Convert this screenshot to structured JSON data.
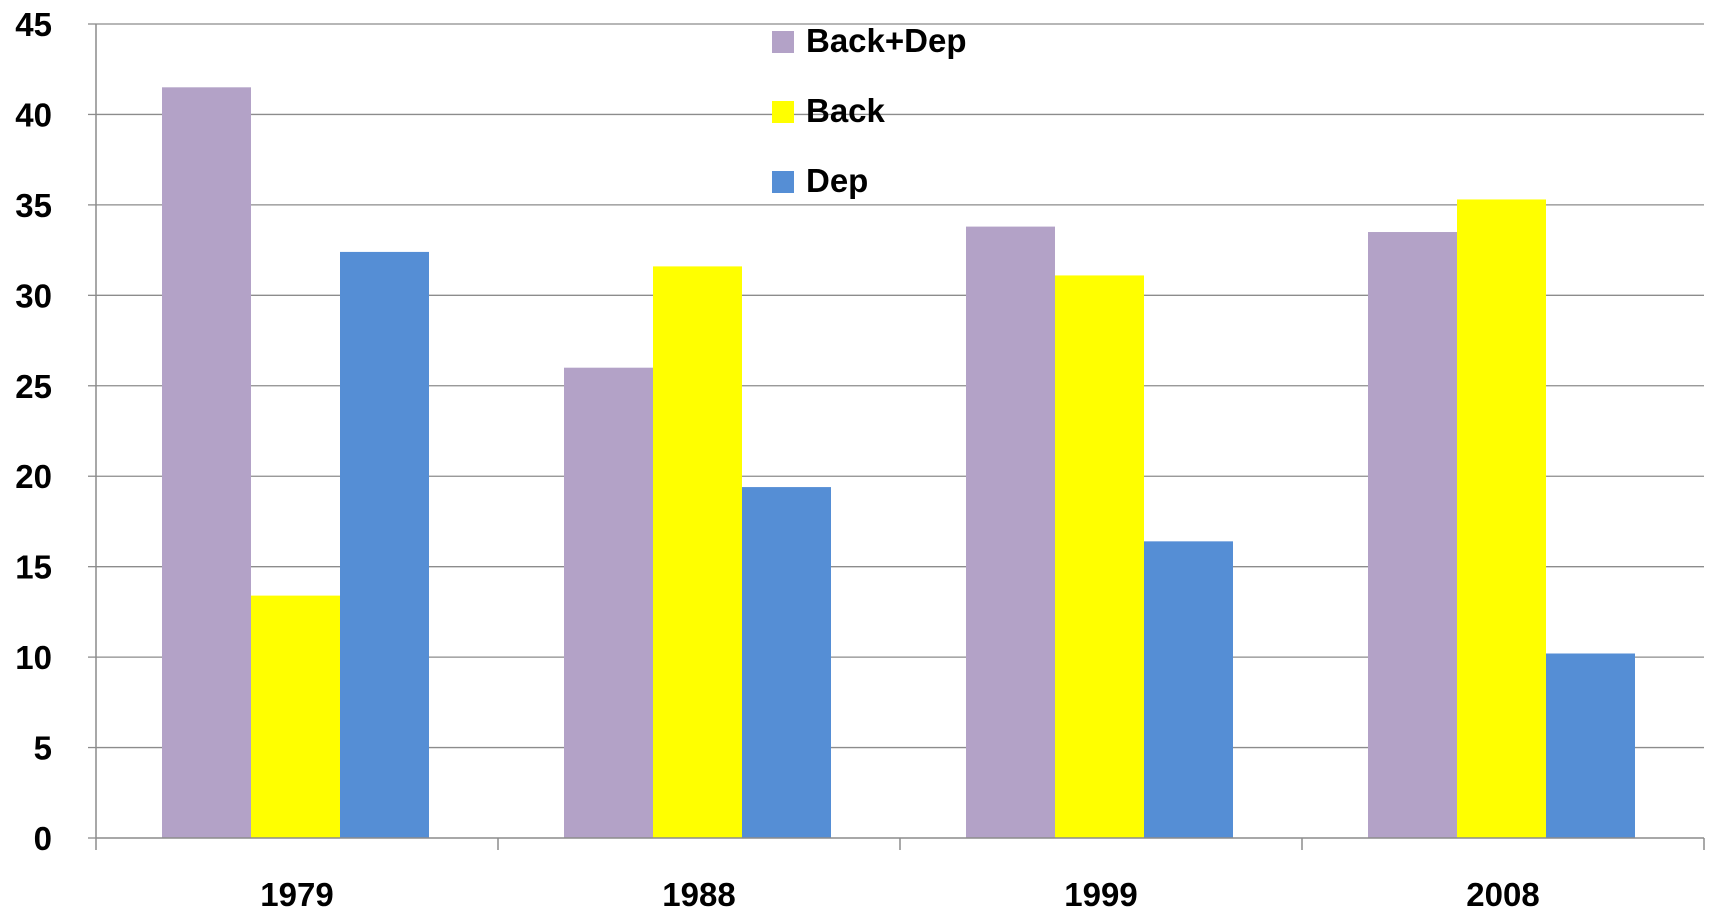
{
  "chart_data": {
    "type": "bar",
    "categories": [
      "1979",
      "1988",
      "1999",
      "2008"
    ],
    "series": [
      {
        "name": "Back+Dep",
        "color": "#b3a2c7",
        "values": [
          41.5,
          26.0,
          33.8,
          33.5
        ]
      },
      {
        "name": "Back",
        "color": "#ffff00",
        "values": [
          13.4,
          31.6,
          31.1,
          35.3
        ]
      },
      {
        "name": "Dep",
        "color": "#558ed5",
        "values": [
          32.4,
          19.4,
          16.4,
          10.2
        ]
      }
    ],
    "ylim": [
      0,
      45
    ],
    "yticks": [
      0,
      5,
      10,
      15,
      20,
      25,
      30,
      35,
      40,
      45
    ],
    "grid": true,
    "legend_position": "top-center",
    "title": "",
    "xlabel": "",
    "ylabel": ""
  }
}
